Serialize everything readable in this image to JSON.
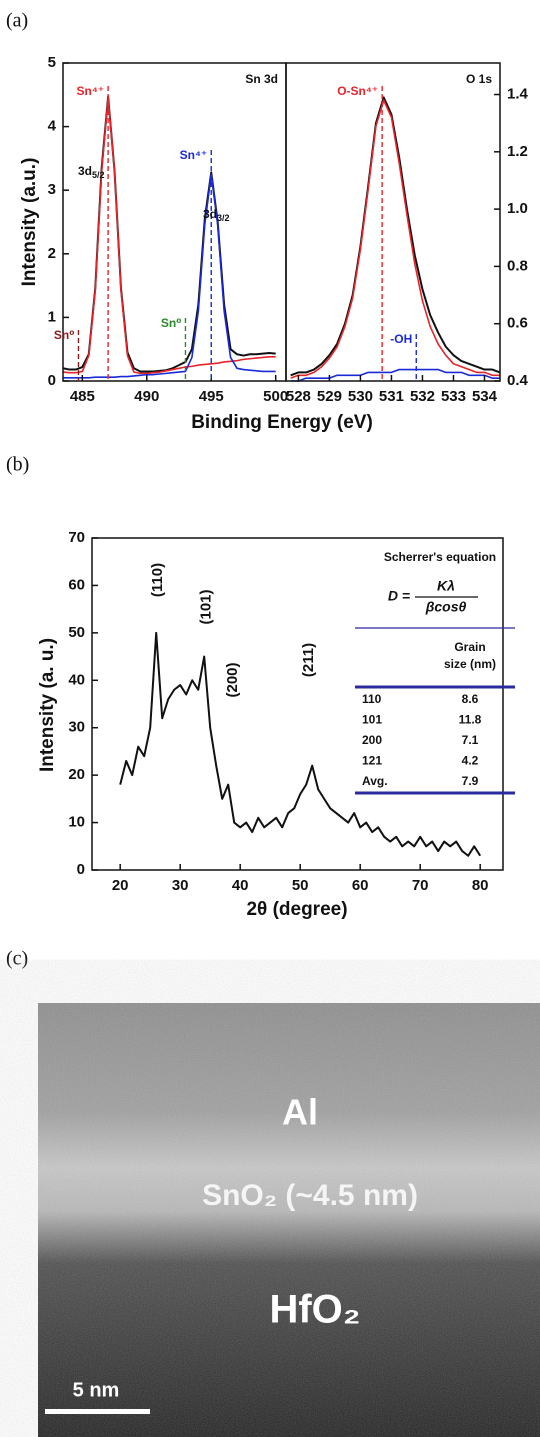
{
  "panels": [
    "(a)",
    "(b)",
    "(c)"
  ],
  "chart_data": [
    {
      "type": "line",
      "label": "Sn 3d",
      "ylabel": "Intensity (a.u.)",
      "xlabel": "Binding Energy (eV)",
      "xlim": [
        483.5,
        500.8
      ],
      "xticks": [
        485,
        490,
        495,
        500
      ],
      "ylim": [
        0,
        5
      ],
      "yticks": [
        0,
        1,
        2,
        3,
        4,
        5
      ],
      "yaxis": "left",
      "x": [
        483.5,
        484,
        484.5,
        485,
        485.5,
        486,
        486.5,
        487,
        487.5,
        488,
        488.5,
        489,
        489.5,
        490,
        490.5,
        491,
        491.5,
        492,
        492.5,
        493,
        493.5,
        494,
        494.5,
        495,
        495.5,
        496,
        496.5,
        497,
        497.5,
        498,
        498.5,
        499,
        499.5,
        500
      ],
      "series": [
        {
          "color": "#111111",
          "values": [
            0.2,
            0.18,
            0.18,
            0.22,
            0.42,
            1.45,
            3.35,
            4.47,
            3.3,
            1.45,
            0.45,
            0.2,
            0.15,
            0.15,
            0.15,
            0.16,
            0.17,
            0.2,
            0.25,
            0.3,
            0.5,
            1.2,
            2.55,
            3.28,
            2.5,
            1.2,
            0.5,
            0.42,
            0.4,
            0.42,
            0.42,
            0.43,
            0.44,
            0.43
          ]
        },
        {
          "color": "#e8242a",
          "values": [
            0.14,
            0.13,
            0.13,
            0.15,
            0.4,
            1.42,
            3.3,
            4.45,
            3.3,
            1.42,
            0.4,
            0.14,
            0.12,
            0.12,
            0.13,
            0.14,
            0.16,
            0.18,
            0.2,
            0.22,
            0.23,
            0.25,
            0.26,
            0.27,
            0.28,
            0.3,
            0.31,
            0.32,
            0.34,
            0.35,
            0.36,
            0.37,
            0.38,
            0.38
          ]
        },
        {
          "color": "#1a2ad8",
          "values": [
            0.05,
            0.05,
            0.05,
            0.05,
            0.05,
            0.06,
            0.06,
            0.06,
            0.06,
            0.07,
            0.07,
            0.08,
            0.09,
            0.1,
            0.1,
            0.11,
            0.12,
            0.13,
            0.14,
            0.15,
            0.37,
            1.1,
            2.46,
            3.25,
            2.46,
            1.1,
            0.37,
            0.2,
            0.18,
            0.17,
            0.16,
            0.15,
            0.15,
            0.15
          ]
        }
      ],
      "markers": [
        {
          "text": "Sn⁴⁺",
          "x": 487,
          "color": "#e8242a"
        },
        {
          "text": "Sn⁴⁺",
          "x": 495,
          "color": "#1a2ad8"
        },
        {
          "text": "Sn⁰",
          "x": 484.7,
          "color": "#8b1a1a"
        },
        {
          "text": "Sn⁰",
          "x": 493,
          "color": "#2a8a2a"
        }
      ],
      "notes": [
        {
          "text": "3d",
          "sub": "5/2"
        },
        {
          "text": "3d",
          "sub": "3/2"
        }
      ]
    },
    {
      "type": "line",
      "label": "O 1s",
      "xlim": [
        527.6,
        534.5
      ],
      "xticks": [
        528,
        529,
        530,
        531,
        532,
        533,
        534
      ],
      "ylim": [
        0.4,
        1.51
      ],
      "yticks": [
        0.4,
        0.6,
        0.8,
        {
          "value": 1,
          "label": "1.0"
        },
        1.2,
        1.4
      ],
      "yaxis": "right",
      "x": [
        527.75,
        528,
        528.25,
        528.5,
        528.75,
        529,
        529.25,
        529.5,
        529.75,
        530,
        530.25,
        530.5,
        530.75,
        531,
        531.25,
        531.5,
        531.75,
        532,
        532.25,
        532.5,
        532.75,
        533,
        533.25,
        533.5,
        533.75,
        534,
        534.25,
        534.5
      ],
      "series": [
        {
          "color": "#111111",
          "values": [
            0.42,
            0.43,
            0.43,
            0.44,
            0.46,
            0.49,
            0.53,
            0.6,
            0.7,
            0.87,
            1.08,
            1.3,
            1.39,
            1.33,
            1.18,
            1.0,
            0.84,
            0.72,
            0.63,
            0.57,
            0.52,
            0.49,
            0.47,
            0.46,
            0.45,
            0.44,
            0.44,
            0.43
          ]
        },
        {
          "color": "#e8242a",
          "values": [
            0.41,
            0.42,
            0.42,
            0.43,
            0.45,
            0.48,
            0.52,
            0.59,
            0.69,
            0.86,
            1.07,
            1.29,
            1.38,
            1.32,
            1.16,
            0.98,
            0.81,
            0.68,
            0.59,
            0.53,
            0.49,
            0.46,
            0.45,
            0.44,
            0.43,
            0.43,
            0.42,
            0.42
          ]
        },
        {
          "color": "#1a2ad8",
          "values": [
            0.4,
            0.4,
            0.41,
            0.41,
            0.41,
            0.41,
            0.42,
            0.42,
            0.42,
            0.42,
            0.43,
            0.43,
            0.43,
            0.43,
            0.44,
            0.44,
            0.44,
            0.44,
            0.44,
            0.44,
            0.43,
            0.43,
            0.43,
            0.42,
            0.42,
            0.42,
            0.41,
            0.41
          ]
        }
      ],
      "markers": [
        {
          "text": "O-Sn⁴⁺",
          "x": 530.7,
          "color": "#e8242a"
        },
        {
          "text": "-OH",
          "x": 531.8,
          "color": "#1a2ad8"
        }
      ]
    },
    {
      "type": "line",
      "ylabel": "Intensity (a. u.)",
      "xlabel": "2θ (degree)",
      "xlim": [
        15.3,
        83.8
      ],
      "xticks": [
        20,
        30,
        40,
        50,
        60,
        70,
        80
      ],
      "ylim": [
        0,
        70
      ],
      "yticks": [
        0,
        10,
        20,
        30,
        40,
        50,
        60,
        70
      ],
      "yaxis": "left",
      "x": [
        20,
        21,
        22,
        23,
        24,
        25,
        26,
        27,
        28,
        29,
        30,
        31,
        32,
        33,
        34,
        35,
        36,
        37,
        38,
        39,
        40,
        41,
        42,
        43,
        44,
        45,
        46,
        47,
        48,
        49,
        50,
        51,
        52,
        53,
        54,
        55,
        56,
        57,
        58,
        59,
        60,
        61,
        62,
        63,
        64,
        65,
        66,
        67,
        68,
        69,
        70,
        71,
        72,
        73,
        74,
        75,
        76,
        77,
        78,
        79,
        80
      ],
      "series": [
        {
          "color": "#111111",
          "values": [
            18,
            23,
            20,
            26,
            24,
            30,
            50,
            32,
            36,
            38,
            39,
            37,
            40,
            38,
            45,
            30,
            22,
            15,
            18,
            10,
            9,
            10,
            8,
            11,
            9,
            10,
            11,
            9,
            12,
            13,
            16,
            18,
            22,
            17,
            15,
            13,
            12,
            11,
            10,
            12,
            9,
            10,
            8,
            9,
            7,
            6,
            7,
            5,
            6,
            5,
            7,
            5,
            6,
            4,
            6,
            5,
            6,
            4,
            3,
            5,
            3
          ]
        }
      ],
      "peak_labels": [
        {
          "text": "(110)",
          "x": 26.3
        },
        {
          "text": "(101)",
          "x": 34.4
        },
        {
          "text": "(200)",
          "x": 38.8
        },
        {
          "text": "(211)",
          "x": 51.5
        }
      ],
      "inset": {
        "title": "Scherrer's equation",
        "formula": {
          "lhs": "D =",
          "numerator": "Kλ",
          "denominator": "βcosθ"
        },
        "header": [
          "Grain",
          "size (nm)"
        ],
        "rows": [
          [
            "110",
            "8.6"
          ],
          [
            "101",
            "11.8"
          ],
          [
            "200",
            "7.1"
          ],
          [
            "121",
            "4.2"
          ],
          [
            "Avg.",
            "7.9"
          ]
        ]
      }
    }
  ],
  "image": {
    "labels": [
      "Al",
      "SnO₂ (~4.5 nm)",
      "HfO₂"
    ],
    "scale_bar": "5 nm"
  }
}
